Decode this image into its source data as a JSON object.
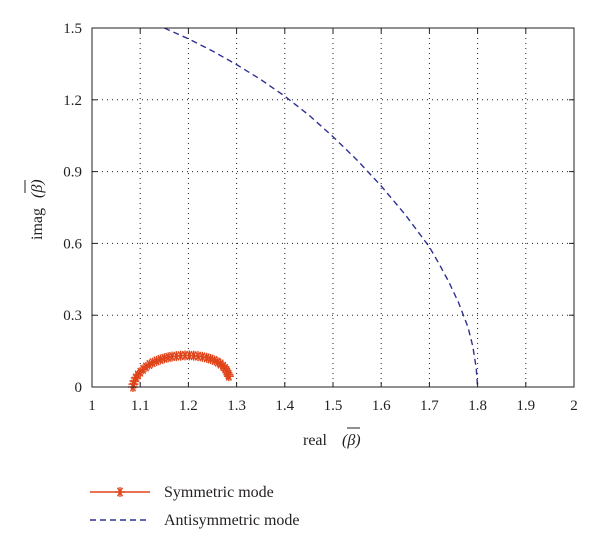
{
  "chart_data": {
    "type": "line",
    "xlabel": "real",
    "ylabel": "imag",
    "xlim": [
      1,
      2
    ],
    "ylim": [
      0,
      1.5
    ],
    "x_ticks": [
      "1",
      "1.1",
      "1.2",
      "1.3",
      "1.4",
      "1.5",
      "1.6",
      "1.7",
      "1.8",
      "1.9",
      "2"
    ],
    "y_ticks": [
      "0",
      "0.3",
      "0.6",
      "0.9",
      "1.2",
      "1.5"
    ],
    "x_tick_values": [
      1,
      1.1,
      1.2,
      1.3,
      1.4,
      1.5,
      1.6,
      1.7,
      1.8,
      1.9,
      2
    ],
    "y_tick_values": [
      0,
      0.3,
      0.6,
      0.9,
      1.2,
      1.5
    ],
    "grid": true,
    "legend_position": "bottom",
    "series": [
      {
        "name": "Symmetric mode",
        "color": "#e0441a",
        "marker": "asterisk",
        "line": "solid",
        "points": [
          [
            1.085,
            0.0
          ],
          [
            1.086,
            0.012
          ],
          [
            1.088,
            0.025
          ],
          [
            1.091,
            0.038
          ],
          [
            1.095,
            0.05
          ],
          [
            1.1,
            0.062
          ],
          [
            1.106,
            0.074
          ],
          [
            1.112,
            0.084
          ],
          [
            1.119,
            0.094
          ],
          [
            1.126,
            0.102
          ],
          [
            1.134,
            0.109
          ],
          [
            1.142,
            0.115
          ],
          [
            1.15,
            0.12
          ],
          [
            1.158,
            0.124
          ],
          [
            1.166,
            0.127
          ],
          [
            1.175,
            0.129
          ],
          [
            1.184,
            0.131
          ],
          [
            1.193,
            0.132
          ],
          [
            1.202,
            0.132
          ],
          [
            1.211,
            0.131
          ],
          [
            1.22,
            0.129
          ],
          [
            1.229,
            0.126
          ],
          [
            1.238,
            0.122
          ],
          [
            1.246,
            0.117
          ],
          [
            1.254,
            0.111
          ],
          [
            1.261,
            0.104
          ],
          [
            1.267,
            0.096
          ],
          [
            1.272,
            0.087
          ],
          [
            1.276,
            0.078
          ],
          [
            1.279,
            0.069
          ],
          [
            1.281,
            0.06
          ],
          [
            1.283,
            0.052
          ],
          [
            1.284,
            0.045
          ]
        ]
      },
      {
        "name": "Antisymmetric mode",
        "color": "#2e3192",
        "marker": "none",
        "line": "dashed",
        "points": [
          [
            1.15,
            1.5
          ],
          [
            1.2,
            1.455
          ],
          [
            1.25,
            1.404
          ],
          [
            1.3,
            1.347
          ],
          [
            1.35,
            1.285
          ],
          [
            1.4,
            1.215
          ],
          [
            1.45,
            1.136
          ],
          [
            1.5,
            1.046
          ],
          [
            1.55,
            0.948
          ],
          [
            1.6,
            0.84
          ],
          [
            1.65,
            0.72
          ],
          [
            1.7,
            0.585
          ],
          [
            1.72,
            0.515
          ],
          [
            1.74,
            0.44
          ],
          [
            1.76,
            0.355
          ],
          [
            1.78,
            0.25
          ],
          [
            1.79,
            0.17
          ],
          [
            1.797,
            0.08
          ],
          [
            1.8,
            0.0
          ]
        ]
      }
    ]
  }
}
